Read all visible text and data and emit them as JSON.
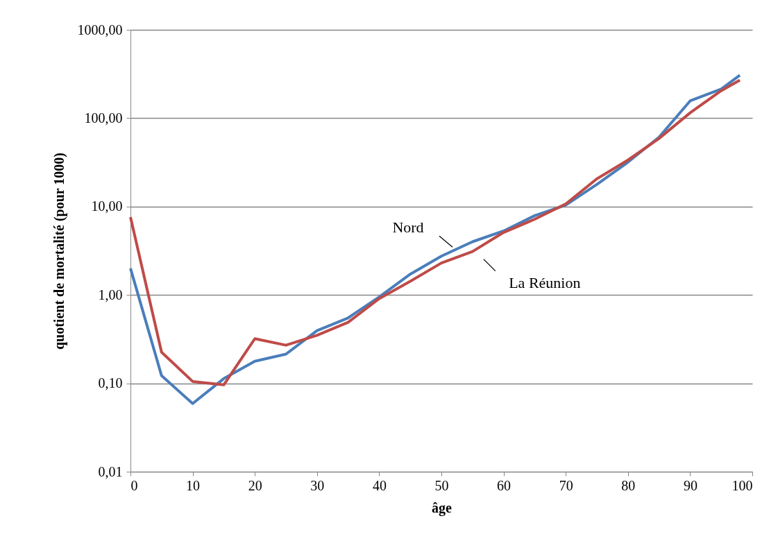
{
  "chart_data": {
    "type": "line",
    "xlabel": "âge",
    "ylabel": "quotient de mortalité (pour 1000)",
    "x": [
      0,
      5,
      10,
      15,
      20,
      25,
      30,
      35,
      40,
      45,
      50,
      55,
      60,
      65,
      70,
      75,
      80,
      85,
      90,
      95,
      98
    ],
    "series": [
      {
        "name": "Nord",
        "color": "#4a7ebb",
        "values": [
          2.0,
          0.122,
          0.059,
          0.113,
          0.178,
          0.214,
          0.395,
          0.55,
          0.95,
          1.72,
          2.75,
          4.0,
          5.3,
          7.9,
          10.4,
          17.8,
          31.8,
          61,
          157,
          214,
          307
        ]
      },
      {
        "name": "La Réunion",
        "color": "#be4b48",
        "values": [
          7.6,
          0.225,
          0.105,
          0.096,
          0.32,
          0.27,
          0.35,
          0.49,
          0.91,
          1.43,
          2.3,
          3.1,
          5.1,
          7.2,
          10.7,
          20.6,
          33.6,
          59,
          115,
          205,
          270
        ]
      }
    ],
    "log": "y",
    "grid": "y",
    "legend": false,
    "marker": "none",
    "line_style": "solid",
    "xlim": [
      0,
      100
    ],
    "xticks": [
      0,
      10,
      20,
      30,
      40,
      50,
      60,
      70,
      80,
      90,
      100
    ],
    "ylim": [
      0.01,
      1000
    ],
    "yticks": [
      {
        "value": 0.01,
        "label": "0,01"
      },
      {
        "value": 0.1,
        "label": "0,10"
      },
      {
        "value": 1,
        "label": "1,00"
      },
      {
        "value": 10,
        "label": "10,00"
      },
      {
        "value": 100,
        "label": "100,00"
      },
      {
        "value": 1000,
        "label": "1000,00"
      }
    ]
  }
}
